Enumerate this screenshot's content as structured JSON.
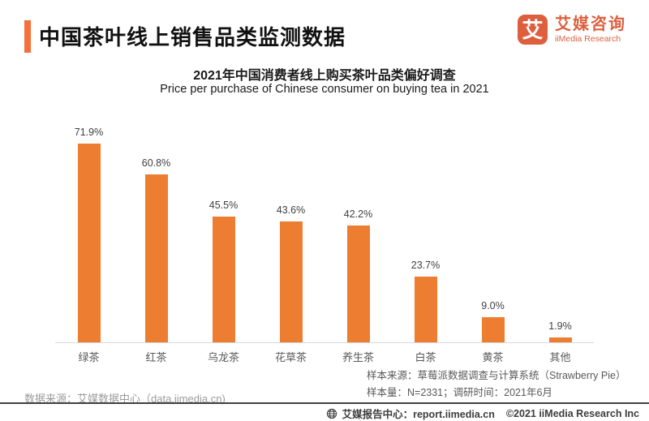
{
  "header": {
    "title": "中国茶叶线上销售品类监测数据",
    "logo": {
      "mark": "艾",
      "name_cn": "艾媒咨询",
      "name_en": "iiMedia Research"
    }
  },
  "chart": {
    "title": "2021年中国消费者线上购买茶叶品类偏好调查",
    "subtitle": "Price per purchase of Chinese consumer on buying tea in 2021"
  },
  "chart_data": {
    "type": "bar",
    "title": "2021年中国消费者线上购买茶叶品类偏好调查",
    "subtitle": "Price per purchase of Chinese consumer on buying tea in 2021",
    "categories": [
      "绿茶",
      "红茶",
      "乌龙茶",
      "花草茶",
      "养生茶",
      "白茶",
      "黄茶",
      "其他"
    ],
    "values": [
      71.9,
      60.8,
      45.5,
      43.6,
      42.2,
      23.7,
      9.0,
      1.9
    ],
    "value_labels": [
      "71.9%",
      "60.8%",
      "45.5%",
      "43.6%",
      "42.2%",
      "23.7%",
      "9.0%",
      "1.9%"
    ],
    "unit": "%",
    "ylim": [
      0,
      80
    ],
    "grid": false,
    "legend": "none",
    "bar_color": "#ED7D31"
  },
  "footnotes": {
    "data_source": "数据来源：艾媒数据中心（data.iimedia.cn)",
    "sample_source": "样本来源：草莓派数据调查与计算系统（Strawberry Pie）",
    "sample_size": "样本量：N=2331；调研时间：2021年6月"
  },
  "footer": {
    "report_center": "艾媒报告中心：report.iimedia.cn",
    "copyright": "©2021  iiMedia Research  Inc"
  },
  "colors": {
    "accent": "#F4703B",
    "bar": "#ED7D31",
    "logo": "#DE5F3E"
  }
}
